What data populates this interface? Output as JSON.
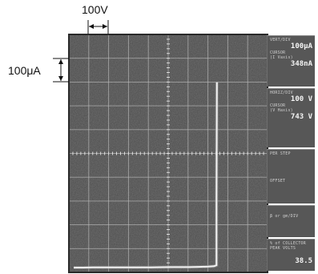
{
  "scale": {
    "x_per_div": "100V",
    "y_per_div": "100μA"
  },
  "readout": {
    "vertical": {
      "label": "VERT/DIV",
      "value": "100μA",
      "cursor_label": "CURSOR",
      "cursor_sub": "(I Vaxis)",
      "cursor_value": "348nA"
    },
    "horizontal": {
      "label": "HORIZ/DIV",
      "value": "100 V",
      "cursor_label": "CURSOR",
      "cursor_sub": "(V Haxis)",
      "cursor_value": "743 V"
    },
    "step": {
      "label": "PER STEP",
      "offset_label": "OFFSET"
    },
    "step_gen": {
      "label": "β or gm/DIV"
    },
    "collector": {
      "label": "% of COLLECTOR PEAK VOLTS",
      "value": "38.5"
    }
  },
  "chart_data": {
    "type": "line",
    "title": "",
    "xlabel": "",
    "ylabel": "",
    "grid": true,
    "divisions": {
      "x": 10,
      "y": 10
    },
    "xlim": [
      0,
      1000
    ],
    "ylim": [
      0,
      1000
    ],
    "x_unit_per_div": "100V",
    "y_unit_per_div": "100μA",
    "series": [
      {
        "x": [
          0,
          50,
          100,
          200,
          300,
          400,
          500,
          600,
          650,
          700,
          730,
          743,
          743,
          744,
          745
        ],
        "y": [
          0,
          0,
          1,
          1,
          1,
          1,
          2,
          2,
          3,
          4,
          6,
          10,
          300,
          600,
          800
        ]
      }
    ],
    "colors": {
      "trace": "#f2f2f2",
      "screen": "#4a4a4a",
      "grid": "#b8b8b8"
    }
  }
}
